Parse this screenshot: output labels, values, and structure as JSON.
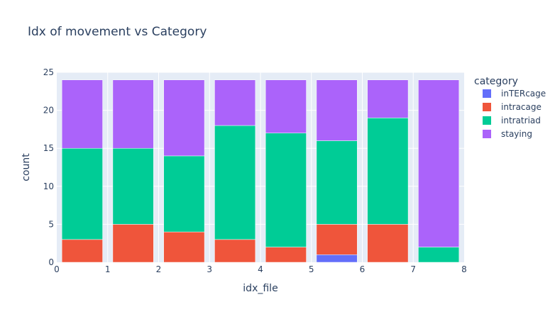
{
  "chart_data": {
    "type": "bar",
    "barmode": "stack",
    "title": "Idx of movement vs Category",
    "xlabel": "idx_file",
    "ylabel": "count",
    "xlim": [
      0,
      8
    ],
    "ylim": [
      0,
      25
    ],
    "x_ticks": [
      0,
      1,
      2,
      3,
      4,
      5,
      6,
      7,
      8
    ],
    "y_ticks": [
      0,
      5,
      10,
      15,
      20,
      25
    ],
    "grid": true,
    "legend_title": "category",
    "legend_position": "right",
    "x": [
      0.5,
      1.5,
      2.5,
      3.5,
      4.5,
      5.5,
      6.5,
      7.5
    ],
    "series": [
      {
        "name": "inTERcage",
        "color": "#636efa",
        "values": [
          0,
          0,
          0,
          0,
          0,
          1,
          0,
          0
        ]
      },
      {
        "name": "intracage",
        "color": "#ef553b",
        "values": [
          3,
          5,
          4,
          3,
          2,
          4,
          5,
          0
        ]
      },
      {
        "name": "intratriad",
        "color": "#00cc96",
        "values": [
          12,
          10,
          10,
          15,
          15,
          11,
          14,
          2
        ]
      },
      {
        "name": "staying",
        "color": "#ab63fa",
        "values": [
          9,
          9,
          10,
          6,
          7,
          8,
          5,
          22
        ]
      }
    ]
  }
}
